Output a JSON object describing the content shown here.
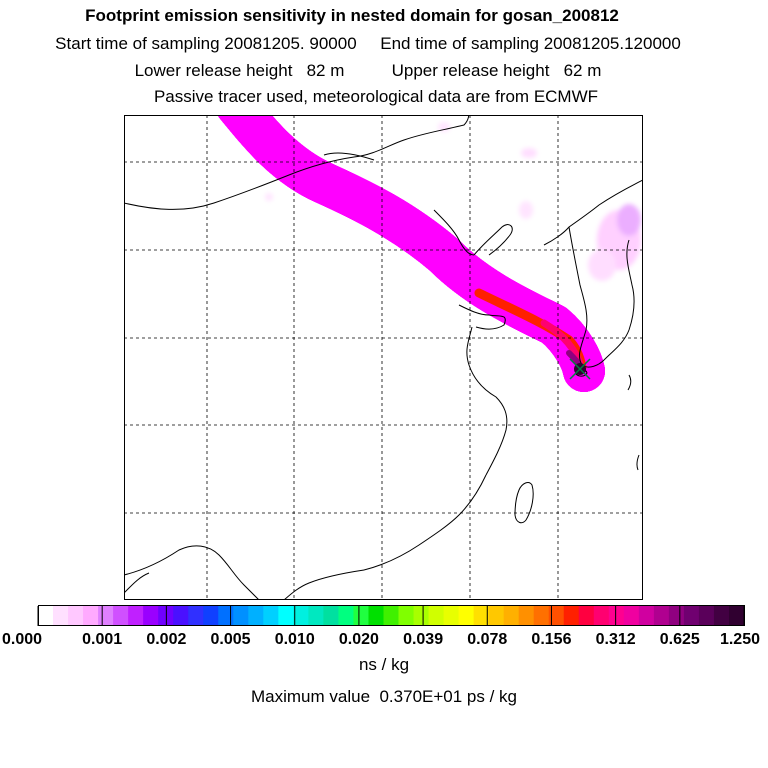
{
  "header": {
    "title": "Footprint emission sensitivity in nested domain for gosan_200812",
    "sampling_line": "Start time of sampling 20081205. 90000     End time of sampling 20081205.120000",
    "release_line": "Lower release height   82 m          Upper release height   62 m",
    "tracer_line": "Passive tracer used, meteorological data are from ECMWF"
  },
  "map": {
    "receptor_marker": "receptor-cross-icon",
    "plume_colors": [
      "#ff00ff",
      "#0000ff",
      "#00ffff",
      "#00ff00",
      "#ffff00",
      "#ff8000",
      "#ff0000"
    ]
  },
  "colorbar": {
    "tick_labels": [
      "0.000",
      "0.001",
      "0.002",
      "0.005",
      "0.010",
      "0.020",
      "0.039",
      "0.078",
      "0.156",
      "0.312",
      "0.625",
      "1.250"
    ],
    "colors": [
      "#ffffff",
      "#ffe0ff",
      "#ffc8ff",
      "#ffaaff",
      "#e080ff",
      "#d050ff",
      "#c020ff",
      "#9a00ff",
      "#7000ff",
      "#4a10ff",
      "#3030ff",
      "#1040ff",
      "#0070ff",
      "#0090ff",
      "#00b0ff",
      "#00d0ff",
      "#00ffff",
      "#00f0e0",
      "#00e8c0",
      "#00e0a0",
      "#00ff80",
      "#20ff40",
      "#00e000",
      "#40f000",
      "#80ff00",
      "#a8ff00",
      "#d0ff00",
      "#e8ff00",
      "#ffff00",
      "#ffe000",
      "#ffc800",
      "#ffb000",
      "#ff9000",
      "#ff7000",
      "#ff5000",
      "#ff2000",
      "#ff0040",
      "#ff0070",
      "#ff0090",
      "#f000a0",
      "#d000a0",
      "#b00090",
      "#900080",
      "#700070",
      "#5a005a",
      "#420042",
      "#300030"
    ],
    "units": "ns / kg",
    "max_value": "Maximum value  0.370E+01 ps / kg"
  }
}
